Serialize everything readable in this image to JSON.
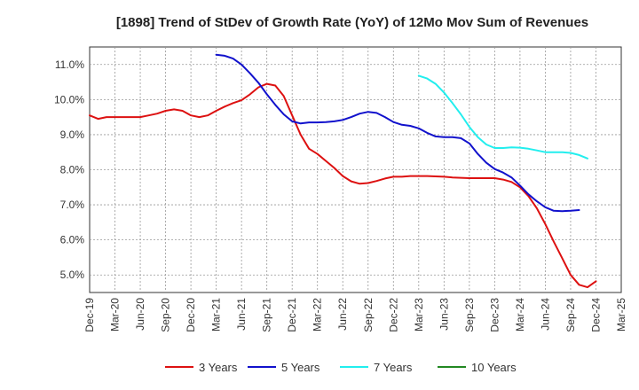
{
  "chart_data": {
    "type": "line",
    "title": "[1898]  Trend of StDev of Growth Rate (YoY) of 12Mo Mov Sum of Revenues",
    "xlabel": "",
    "ylabel": "",
    "ylim": [
      4.5,
      11.5
    ],
    "y_ticks": [
      5.0,
      6.0,
      7.0,
      8.0,
      9.0,
      10.0,
      11.0
    ],
    "y_tick_labels": [
      "5.0%",
      "6.0%",
      "7.0%",
      "8.0%",
      "9.0%",
      "10.0%",
      "11.0%"
    ],
    "x_tick_labels": [
      "Dec-19",
      "Mar-20",
      "Jun-20",
      "Sep-20",
      "Dec-20",
      "Mar-21",
      "Jun-21",
      "Sep-21",
      "Dec-21",
      "Mar-22",
      "Jun-22",
      "Sep-22",
      "Dec-22",
      "Mar-23",
      "Jun-23",
      "Sep-23",
      "Dec-23",
      "Mar-24",
      "Jun-24",
      "Sep-24",
      "Dec-24",
      "Mar-25"
    ],
    "grid": true,
    "legend_position": "bottom",
    "series": [
      {
        "name": "3 Years",
        "color": "#dd1111",
        "start_index": 0,
        "values": [
          9.55,
          9.45,
          9.5,
          9.5,
          9.5,
          9.5,
          9.5,
          9.55,
          9.6,
          9.68,
          9.72,
          9.68,
          9.55,
          9.5,
          9.55,
          9.68,
          9.8,
          9.9,
          9.98,
          10.15,
          10.35,
          10.45,
          10.4,
          10.1,
          9.55,
          9.0,
          8.6,
          8.45,
          8.25,
          8.05,
          7.82,
          7.67,
          7.6,
          7.62,
          7.68,
          7.75,
          7.8,
          7.8,
          7.82,
          7.82,
          7.82,
          7.81,
          7.8,
          7.78,
          7.77,
          7.76,
          7.76,
          7.76,
          7.76,
          7.72,
          7.65,
          7.5,
          7.25,
          6.9,
          6.45,
          5.95,
          5.48,
          5.0,
          4.72,
          4.65,
          4.82
        ]
      },
      {
        "name": "5 Years",
        "color": "#1111cc",
        "start_index": 15,
        "values": [
          11.28,
          11.25,
          11.17,
          11.0,
          10.75,
          10.48,
          10.15,
          9.85,
          9.58,
          9.38,
          9.32,
          9.35,
          9.35,
          9.36,
          9.38,
          9.42,
          9.5,
          9.6,
          9.65,
          9.62,
          9.5,
          9.36,
          9.28,
          9.25,
          9.18,
          9.05,
          8.95,
          8.93,
          8.93,
          8.9,
          8.75,
          8.45,
          8.2,
          8.02,
          7.92,
          7.78,
          7.55,
          7.3,
          7.1,
          6.93,
          6.83,
          6.82,
          6.83,
          6.85
        ]
      },
      {
        "name": "7 Years",
        "color": "#22eeee",
        "start_index": 39,
        "values": [
          10.68,
          10.6,
          10.45,
          10.2,
          9.9,
          9.58,
          9.22,
          8.93,
          8.72,
          8.62,
          8.62,
          8.64,
          8.63,
          8.6,
          8.55,
          8.5,
          8.5,
          8.5,
          8.48,
          8.42,
          8.32
        ]
      },
      {
        "name": "10 Years",
        "color": "#228822",
        "start_index": 0,
        "values": []
      }
    ]
  }
}
